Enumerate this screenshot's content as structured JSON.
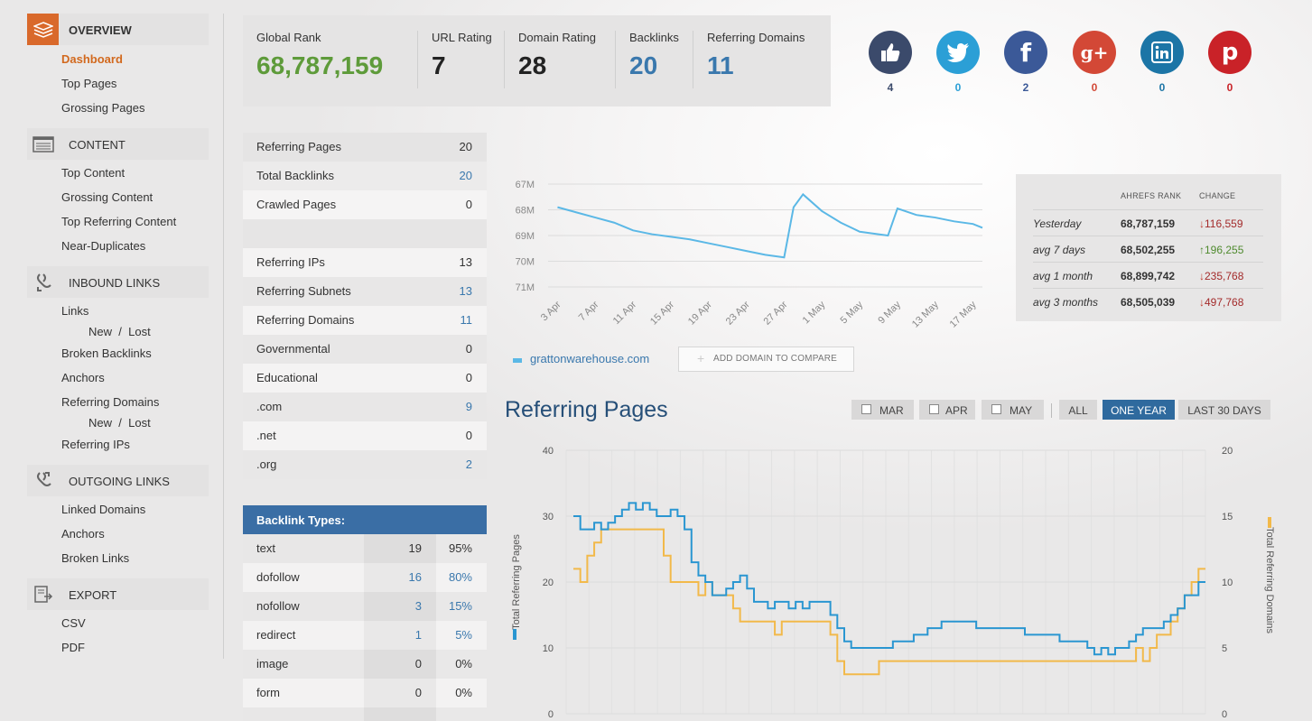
{
  "sidebar": {
    "sections": [
      {
        "title": "OVERVIEW",
        "icon": "layers-icon",
        "items": [
          "Dashboard",
          "Top Pages",
          "Grossing Pages"
        ]
      },
      {
        "title": "CONTENT",
        "icon": "list-icon",
        "items": [
          "Top Content",
          "Grossing Content",
          "Top Referring Content",
          "Near-Duplicates"
        ]
      },
      {
        "title": "INBOUND LINKS",
        "icon": "inbound-link-icon",
        "items": [
          "Links",
          "Broken Backlinks",
          "Anchors",
          "Referring Domains",
          "Referring IPs"
        ],
        "sub": {
          "new": "New",
          "sep": "/",
          "lost": "Lost"
        }
      },
      {
        "title": "OUTGOING LINKS",
        "icon": "outgoing-link-icon",
        "items": [
          "Linked Domains",
          "Anchors",
          "Broken Links"
        ]
      },
      {
        "title": "EXPORT",
        "icon": "export-icon",
        "items": [
          "CSV",
          "PDF"
        ]
      }
    ]
  },
  "metrics": [
    {
      "label": "Global Rank",
      "value": "68,787,159"
    },
    {
      "label": "URL Rating",
      "value": "7"
    },
    {
      "label": "Domain Rating",
      "value": "28"
    },
    {
      "label": "Backlinks",
      "value": "20"
    },
    {
      "label": "Referring Domains",
      "value": "11"
    }
  ],
  "social": [
    {
      "icon": "thumbs-up-icon",
      "count": "4",
      "color": "#3b4a6b"
    },
    {
      "icon": "twitter-icon",
      "count": "0",
      "color": "#2b9fd6"
    },
    {
      "icon": "facebook-icon",
      "count": "2",
      "color": "#3b5998"
    },
    {
      "icon": "google-plus-icon",
      "count": "0",
      "color": "#d34836"
    },
    {
      "icon": "linkedin-icon",
      "count": "0",
      "color": "#1c75a6"
    },
    {
      "icon": "pinterest-icon",
      "count": "0",
      "color": "#c92228"
    }
  ],
  "stats": [
    {
      "k": "Referring Pages",
      "v": "20"
    },
    {
      "k": "Total Backlinks",
      "v": "20"
    },
    {
      "k": "Crawled Pages",
      "v": "0"
    },
    {
      "k": "",
      "v": ""
    },
    {
      "k": "Referring IPs",
      "v": "13"
    },
    {
      "k": "Referring Subnets",
      "v": "13"
    },
    {
      "k": "Referring Domains",
      "v": "11"
    },
    {
      "k": "Governmental",
      "v": "0"
    },
    {
      "k": "Educational",
      "v": "0"
    },
    {
      "k": ".com",
      "v": "9"
    },
    {
      "k": ".net",
      "v": "0"
    },
    {
      "k": ".org",
      "v": "2"
    }
  ],
  "backlink_types": {
    "title": "Backlink Types:",
    "rows": [
      {
        "k": "text",
        "c": "19",
        "p": "95%"
      },
      {
        "k": "dofollow",
        "c": "16",
        "p": "80%"
      },
      {
        "k": "nofollow",
        "c": "3",
        "p": "15%"
      },
      {
        "k": "redirect",
        "c": "1",
        "p": "5%"
      },
      {
        "k": "image",
        "c": "0",
        "p": "0%"
      },
      {
        "k": "form",
        "c": "0",
        "p": "0%"
      }
    ]
  },
  "rank_chart": {
    "ytick_labels": [
      "67M",
      "68M",
      "69M",
      "70M",
      "71M"
    ],
    "xtick_labels": [
      "3 Apr",
      "7 Apr",
      "11 Apr",
      "15 Apr",
      "19 Apr",
      "23 Apr",
      "27 Apr",
      "1 May",
      "5 May",
      "9 May",
      "13 May",
      "17 May"
    ],
    "legend": "grattonwarehouse.com",
    "compare_button": "ADD DOMAIN TO COMPARE",
    "color": "#5bb8e6"
  },
  "rank_table": {
    "headers": [
      "AHREFS RANK",
      "CHANGE"
    ],
    "rows": [
      {
        "period": "Yesterday",
        "rank": "68,787,159",
        "change": "116,559",
        "dir": "down"
      },
      {
        "period": "avg 7 days",
        "rank": "68,502,255",
        "change": "196,255",
        "dir": "up"
      },
      {
        "period": "avg 1 month",
        "rank": "68,899,742",
        "change": "235,768",
        "dir": "down"
      },
      {
        "period": "avg 3 months",
        "rank": "68,505,039",
        "change": "497,768",
        "dir": "down"
      }
    ]
  },
  "referring_pages": {
    "title": "Referring Pages",
    "filters": [
      "MAR",
      "APR",
      "MAY"
    ],
    "ranges": [
      "ALL",
      "ONE YEAR",
      "LAST 30 DAYS"
    ],
    "active_range": "ONE YEAR"
  },
  "chart_data": [
    {
      "type": "line",
      "title": "",
      "y_inverted": true,
      "ylim": [
        67000000,
        71000000
      ],
      "x": [
        "3 Apr",
        "5 Apr",
        "7 Apr",
        "9 Apr",
        "11 Apr",
        "13 Apr",
        "15 Apr",
        "17 Apr",
        "19 Apr",
        "21 Apr",
        "23 Apr",
        "25 Apr",
        "27 Apr",
        "28 Apr",
        "29 Apr",
        "1 May",
        "3 May",
        "5 May",
        "7 May",
        "8 May",
        "9 May",
        "11 May",
        "13 May",
        "15 May",
        "17 May",
        "18 May"
      ],
      "series": [
        {
          "name": "grattonwarehouse.com",
          "values": [
            67900000,
            68100000,
            68300000,
            68500000,
            68800000,
            68950000,
            69050000,
            69150000,
            69300000,
            69450000,
            69600000,
            69750000,
            69850000,
            67900000,
            67400000,
            68050000,
            68500000,
            68850000,
            68950000,
            69000000,
            67950000,
            68200000,
            68300000,
            68450000,
            68550000,
            68700000
          ]
        }
      ]
    },
    {
      "type": "line",
      "title": "",
      "ylabel": "Total Referring Pages",
      "y2label": "Total Referring Domains",
      "ylim": [
        0,
        40
      ],
      "y2lim": [
        0,
        20
      ],
      "y_ticks": [
        0,
        10,
        20,
        30,
        40
      ],
      "y2_ticks": [
        0,
        5,
        10,
        15,
        20
      ],
      "step": true,
      "series": [
        {
          "name": "Total Referring Pages",
          "axis": "left",
          "color": "#2a96d1",
          "points": [
            [
              0,
              30
            ],
            [
              1,
              28
            ],
            [
              3,
              29
            ],
            [
              4,
              28
            ],
            [
              5,
              29
            ],
            [
              6,
              30
            ],
            [
              7,
              31
            ],
            [
              8,
              32
            ],
            [
              9,
              31
            ],
            [
              10,
              32
            ],
            [
              11,
              31
            ],
            [
              12,
              30
            ],
            [
              13,
              30
            ],
            [
              14,
              31
            ],
            [
              15,
              30
            ],
            [
              16,
              28
            ],
            [
              17,
              23
            ],
            [
              18,
              21
            ],
            [
              19,
              20
            ],
            [
              20,
              18
            ],
            [
              22,
              19
            ],
            [
              23,
              20
            ],
            [
              24,
              21
            ],
            [
              25,
              19
            ],
            [
              26,
              17
            ],
            [
              28,
              16
            ],
            [
              29,
              17
            ],
            [
              31,
              16
            ],
            [
              32,
              17
            ],
            [
              33,
              16
            ],
            [
              34,
              17
            ],
            [
              36,
              17
            ],
            [
              37,
              15
            ],
            [
              38,
              13
            ],
            [
              39,
              11
            ],
            [
              40,
              10
            ],
            [
              46,
              11
            ],
            [
              49,
              12
            ],
            [
              51,
              13
            ],
            [
              53,
              14
            ],
            [
              58,
              13
            ],
            [
              63,
              13
            ],
            [
              65,
              12
            ],
            [
              68,
              12
            ],
            [
              70,
              11
            ],
            [
              72,
              11
            ],
            [
              74,
              10
            ],
            [
              75,
              9
            ],
            [
              76,
              10
            ],
            [
              77,
              9
            ],
            [
              78,
              10
            ],
            [
              80,
              11
            ],
            [
              81,
              12
            ],
            [
              82,
              13
            ],
            [
              84,
              13
            ],
            [
              85,
              14
            ],
            [
              86,
              15
            ],
            [
              87,
              16
            ],
            [
              88,
              18
            ],
            [
              90,
              20
            ],
            [
              91,
              20
            ]
          ]
        },
        {
          "name": "Total Referring Domains",
          "axis": "right",
          "color": "#f2b94a",
          "points": [
            [
              0,
              11
            ],
            [
              1,
              10
            ],
            [
              2,
              12
            ],
            [
              3,
              13
            ],
            [
              4,
              14
            ],
            [
              5,
              14
            ],
            [
              6,
              14
            ],
            [
              8,
              14
            ],
            [
              10,
              14
            ],
            [
              12,
              14
            ],
            [
              13,
              12
            ],
            [
              14,
              10
            ],
            [
              17,
              10
            ],
            [
              18,
              9
            ],
            [
              19,
              10
            ],
            [
              20,
              9
            ],
            [
              23,
              8
            ],
            [
              24,
              7
            ],
            [
              28,
              7
            ],
            [
              29,
              6
            ],
            [
              30,
              7
            ],
            [
              33,
              7
            ],
            [
              34,
              7
            ],
            [
              35,
              7
            ],
            [
              37,
              6
            ],
            [
              38,
              4
            ],
            [
              39,
              3
            ],
            [
              43,
              3
            ],
            [
              44,
              4
            ],
            [
              80,
              4
            ],
            [
              81,
              5
            ],
            [
              82,
              4
            ],
            [
              83,
              5
            ],
            [
              84,
              6
            ],
            [
              85,
              6
            ],
            [
              86,
              7
            ],
            [
              87,
              8
            ],
            [
              88,
              9
            ],
            [
              89,
              10
            ],
            [
              90,
              11
            ],
            [
              91,
              11
            ]
          ]
        }
      ]
    }
  ]
}
